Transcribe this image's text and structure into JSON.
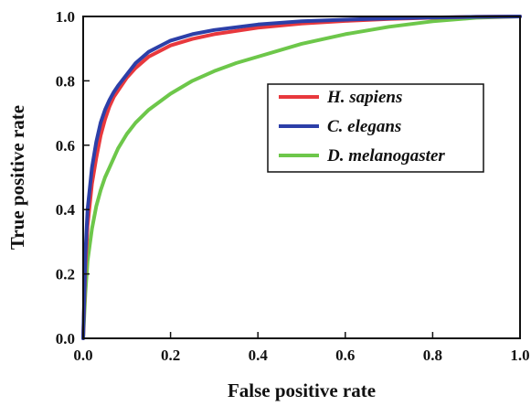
{
  "chart_data": {
    "type": "line",
    "title": "",
    "xlabel": "False positive rate",
    "ylabel": "True positive rate",
    "xlim": [
      0.0,
      1.0
    ],
    "ylim": [
      0.0,
      1.0
    ],
    "xticks": [
      "0.0",
      "0.2",
      "0.4",
      "0.6",
      "0.8",
      "1.0"
    ],
    "yticks": [
      "0.0",
      "0.2",
      "0.4",
      "0.6",
      "0.8",
      "1.0"
    ],
    "grid": false,
    "legend_position": "center-right",
    "series": [
      {
        "name": "H. sapiens",
        "color": "#e8383d",
        "x": [
          0.0,
          0.005,
          0.01,
          0.02,
          0.03,
          0.04,
          0.05,
          0.06,
          0.07,
          0.08,
          0.1,
          0.12,
          0.15,
          0.2,
          0.25,
          0.3,
          0.4,
          0.5,
          0.6,
          0.7,
          0.8,
          0.9,
          1.0
        ],
        "y": [
          0.0,
          0.22,
          0.35,
          0.48,
          0.56,
          0.63,
          0.68,
          0.72,
          0.75,
          0.77,
          0.81,
          0.84,
          0.875,
          0.91,
          0.93,
          0.945,
          0.965,
          0.978,
          0.986,
          0.992,
          0.996,
          0.999,
          1.0
        ]
      },
      {
        "name": "C. elegans",
        "color": "#2c3fa8",
        "x": [
          0.0,
          0.005,
          0.01,
          0.02,
          0.03,
          0.04,
          0.05,
          0.06,
          0.07,
          0.08,
          0.1,
          0.12,
          0.15,
          0.2,
          0.25,
          0.3,
          0.4,
          0.5,
          0.6,
          0.7,
          0.8,
          0.9,
          1.0
        ],
        "y": [
          0.0,
          0.26,
          0.4,
          0.53,
          0.61,
          0.67,
          0.71,
          0.74,
          0.765,
          0.785,
          0.82,
          0.855,
          0.89,
          0.925,
          0.945,
          0.958,
          0.975,
          0.985,
          0.99,
          0.994,
          0.997,
          0.999,
          1.0
        ]
      },
      {
        "name": "D. melanogaster",
        "color": "#6dc74a",
        "x": [
          0.0,
          0.005,
          0.01,
          0.02,
          0.03,
          0.04,
          0.05,
          0.06,
          0.08,
          0.1,
          0.12,
          0.15,
          0.2,
          0.25,
          0.3,
          0.35,
          0.4,
          0.5,
          0.6,
          0.7,
          0.8,
          0.9,
          1.0
        ],
        "y": [
          0.0,
          0.14,
          0.24,
          0.34,
          0.41,
          0.46,
          0.5,
          0.53,
          0.59,
          0.635,
          0.67,
          0.71,
          0.76,
          0.8,
          0.83,
          0.855,
          0.875,
          0.915,
          0.945,
          0.968,
          0.985,
          0.996,
          1.0
        ]
      }
    ]
  }
}
